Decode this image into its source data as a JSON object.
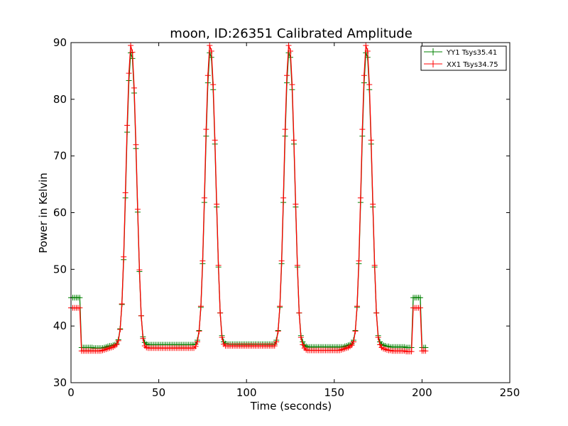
{
  "chart_data": {
    "type": "line",
    "title": "moon, ID:26351 Calibrated Amplitude",
    "xlabel": "Time (seconds)",
    "ylabel": "Power in Kelvin",
    "xlim": [
      0,
      250
    ],
    "ylim": [
      30,
      90
    ],
    "xticks": [
      "0",
      "50",
      "100",
      "150",
      "200",
      "250"
    ],
    "yticks": [
      "30",
      "40",
      "50",
      "60",
      "70",
      "80",
      "90"
    ],
    "grid": false,
    "legend_position": "top-right",
    "series": [
      {
        "name": "YY1 Tsys35.41",
        "color": "#008000",
        "x": [
          0,
          1,
          2,
          3,
          4,
          5,
          6,
          7,
          8,
          9,
          10,
          11,
          12,
          13,
          14,
          15,
          16,
          17,
          18,
          19,
          20,
          21,
          22,
          23,
          24,
          25,
          26,
          27,
          28,
          29,
          30,
          31,
          32,
          33,
          34,
          35,
          36,
          37,
          38,
          39,
          40,
          41,
          42,
          43,
          44,
          45,
          46,
          47,
          48,
          49,
          50,
          51,
          52,
          53,
          54,
          55,
          56,
          57,
          58,
          59,
          60,
          61,
          62,
          63,
          64,
          65,
          66,
          67,
          68,
          69,
          70,
          71,
          72,
          73,
          74,
          75,
          76,
          77,
          78,
          79,
          80,
          81,
          82,
          83,
          84,
          85,
          86,
          87,
          88,
          89,
          90,
          91,
          92,
          93,
          94,
          95,
          96,
          97,
          98,
          99,
          100,
          101,
          102,
          103,
          104,
          105,
          106,
          107,
          108,
          109,
          110,
          111,
          112,
          113,
          114,
          115,
          116,
          117,
          118,
          119,
          120,
          121,
          122,
          123,
          124,
          125,
          126,
          127,
          128,
          129,
          130,
          131,
          132,
          133,
          134,
          135,
          136,
          137,
          138,
          139,
          140,
          141,
          142,
          143,
          144,
          145,
          146,
          147,
          148,
          149,
          150,
          151,
          152,
          153,
          154,
          155,
          156,
          157,
          158,
          159,
          160,
          161,
          162,
          163,
          164,
          165,
          166,
          167,
          168,
          169,
          170,
          171,
          172,
          173,
          174,
          175,
          176,
          177,
          178,
          179,
          180,
          181,
          182,
          183,
          184,
          185,
          186,
          187,
          188,
          189,
          190,
          191,
          192,
          193,
          194,
          195,
          196,
          197,
          198,
          199,
          200,
          201,
          202
        ],
        "y": [
          45,
          45,
          45,
          45,
          45,
          45,
          36.2,
          36.2,
          36.2,
          36.2,
          36.2,
          36.2,
          36.2,
          36.1,
          36.1,
          36.1,
          36.1,
          36.1,
          36.1,
          36.2,
          36.3,
          36.4,
          36.5,
          36.5,
          36.6,
          36.7,
          36.9,
          37.6,
          39.5,
          43.8,
          51.7,
          62.6,
          74.2,
          83.3,
          88.2,
          87.2,
          81.1,
          71.3,
          60.1,
          49.6,
          41.8,
          38.1,
          37.1,
          36.8,
          36.7,
          36.7,
          36.7,
          36.7,
          36.7,
          36.7,
          36.7,
          36.7,
          36.7,
          36.7,
          36.7,
          36.7,
          36.7,
          36.7,
          36.7,
          36.7,
          36.7,
          36.7,
          36.7,
          36.7,
          36.7,
          36.7,
          36.7,
          36.7,
          36.7,
          36.7,
          36.7,
          36.8,
          37.5,
          39.2,
          43.3,
          51.0,
          61.8,
          73.5,
          82.9,
          88.2,
          87.4,
          81.7,
          72.1,
          61.0,
          50.4,
          42.3,
          38.3,
          37.2,
          36.9,
          36.8,
          36.8,
          36.8,
          36.8,
          36.8,
          36.8,
          36.8,
          36.8,
          36.8,
          36.8,
          36.8,
          36.8,
          36.8,
          36.8,
          36.8,
          36.8,
          36.8,
          36.8,
          36.8,
          36.8,
          36.8,
          36.8,
          36.8,
          36.8,
          36.8,
          36.8,
          36.8,
          36.8,
          37.5,
          39.2,
          43.3,
          51.0,
          61.8,
          73.5,
          82.9,
          88.2,
          87.4,
          81.7,
          72.1,
          61.0,
          50.4,
          42.3,
          38.3,
          37.2,
          36.6,
          36.4,
          36.3,
          36.3,
          36.3,
          36.3,
          36.3,
          36.3,
          36.3,
          36.3,
          36.3,
          36.3,
          36.3,
          36.3,
          36.3,
          36.3,
          36.3,
          36.3,
          36.3,
          36.3,
          36.3,
          36.3,
          36.3,
          36.4,
          36.5,
          36.6,
          36.7,
          36.9,
          37.5,
          39.2,
          43.3,
          51.0,
          61.8,
          73.5,
          82.9,
          88.2,
          87.4,
          81.7,
          72.1,
          61.0,
          50.4,
          42.3,
          38.3,
          37.2,
          36.8,
          36.6,
          36.5,
          36.4,
          36.4,
          36.3,
          36.3,
          36.3,
          36.3,
          36.3,
          36.3,
          36.3,
          36.3,
          36.3,
          36.2,
          36.2,
          36.2,
          36.2,
          45,
          45,
          45,
          45,
          45,
          36.2,
          36.2,
          36.2
        ]
      },
      {
        "name": "XX1 Tsys34.75",
        "color": "#ff0000",
        "x": [
          0,
          1,
          2,
          3,
          4,
          5,
          6,
          7,
          8,
          9,
          10,
          11,
          12,
          13,
          14,
          15,
          16,
          17,
          18,
          19,
          20,
          21,
          22,
          23,
          24,
          25,
          26,
          27,
          28,
          29,
          30,
          31,
          32,
          33,
          34,
          35,
          36,
          37,
          38,
          39,
          40,
          41,
          42,
          43,
          44,
          45,
          46,
          47,
          48,
          49,
          50,
          51,
          52,
          53,
          54,
          55,
          56,
          57,
          58,
          59,
          60,
          61,
          62,
          63,
          64,
          65,
          66,
          67,
          68,
          69,
          70,
          71,
          72,
          73,
          74,
          75,
          76,
          77,
          78,
          79,
          80,
          81,
          82,
          83,
          84,
          85,
          86,
          87,
          88,
          89,
          90,
          91,
          92,
          93,
          94,
          95,
          96,
          97,
          98,
          99,
          100,
          101,
          102,
          103,
          104,
          105,
          106,
          107,
          108,
          109,
          110,
          111,
          112,
          113,
          114,
          115,
          116,
          117,
          118,
          119,
          120,
          121,
          122,
          123,
          124,
          125,
          126,
          127,
          128,
          129,
          130,
          131,
          132,
          133,
          134,
          135,
          136,
          137,
          138,
          139,
          140,
          141,
          142,
          143,
          144,
          145,
          146,
          147,
          148,
          149,
          150,
          151,
          152,
          153,
          154,
          155,
          156,
          157,
          158,
          159,
          160,
          161,
          162,
          163,
          164,
          165,
          166,
          167,
          168,
          169,
          170,
          171,
          172,
          173,
          174,
          175,
          176,
          177,
          178,
          179,
          180,
          181,
          182,
          183,
          184,
          185,
          186,
          187,
          188,
          189,
          190,
          191,
          192,
          193,
          194,
          195,
          196,
          197,
          198,
          199,
          200,
          201,
          202
        ],
        "y": [
          43.2,
          43.2,
          43.2,
          43.2,
          43.2,
          43.2,
          35.6,
          35.6,
          35.6,
          35.6,
          35.6,
          35.6,
          35.6,
          35.6,
          35.6,
          35.6,
          35.6,
          35.6,
          35.7,
          35.8,
          35.9,
          36.0,
          36.1,
          36.2,
          36.3,
          36.5,
          36.7,
          37.4,
          39.4,
          43.9,
          52.2,
          63.5,
          75.4,
          84.6,
          89.5,
          88.3,
          82.0,
          72.0,
          60.6,
          49.9,
          41.8,
          37.8,
          36.5,
          36.2,
          36.1,
          36.1,
          36.1,
          36.1,
          36.1,
          36.1,
          36.1,
          36.1,
          36.1,
          36.1,
          36.1,
          36.1,
          36.1,
          36.1,
          36.1,
          36.1,
          36.1,
          36.1,
          36.1,
          36.1,
          36.1,
          36.1,
          36.1,
          36.1,
          36.1,
          36.1,
          36.1,
          36.4,
          37.2,
          39.1,
          43.5,
          51.5,
          62.6,
          74.7,
          84.2,
          89.5,
          88.5,
          82.6,
          72.8,
          61.5,
          50.7,
          42.3,
          38.0,
          36.8,
          36.5,
          36.5,
          36.5,
          36.5,
          36.5,
          36.5,
          36.5,
          36.5,
          36.5,
          36.5,
          36.5,
          36.5,
          36.5,
          36.5,
          36.5,
          36.5,
          36.5,
          36.5,
          36.5,
          36.5,
          36.5,
          36.5,
          36.5,
          36.5,
          36.5,
          36.5,
          36.5,
          36.5,
          36.5,
          37.2,
          39.1,
          43.5,
          51.5,
          62.6,
          74.7,
          84.2,
          89.5,
          88.5,
          82.6,
          72.8,
          61.5,
          50.7,
          42.3,
          38.0,
          36.7,
          36.1,
          35.8,
          35.7,
          35.7,
          35.7,
          35.7,
          35.7,
          35.7,
          35.7,
          35.7,
          35.7,
          35.7,
          35.7,
          35.7,
          35.7,
          35.7,
          35.7,
          35.7,
          35.7,
          35.7,
          35.7,
          35.8,
          35.9,
          36.0,
          36.1,
          36.2,
          36.4,
          36.6,
          37.2,
          39.1,
          43.5,
          51.5,
          62.6,
          74.7,
          84.2,
          89.5,
          88.5,
          82.6,
          72.8,
          61.5,
          50.7,
          42.3,
          38.0,
          36.7,
          36.2,
          36.0,
          35.9,
          35.8,
          35.7,
          35.7,
          35.6,
          35.6,
          35.6,
          35.6,
          35.6,
          35.6,
          35.6,
          35.6,
          35.5,
          35.5,
          35.5,
          35.5,
          43.2,
          43.2,
          43.2,
          43.2,
          43.2,
          35.6,
          35.6,
          35.6
        ]
      }
    ]
  }
}
